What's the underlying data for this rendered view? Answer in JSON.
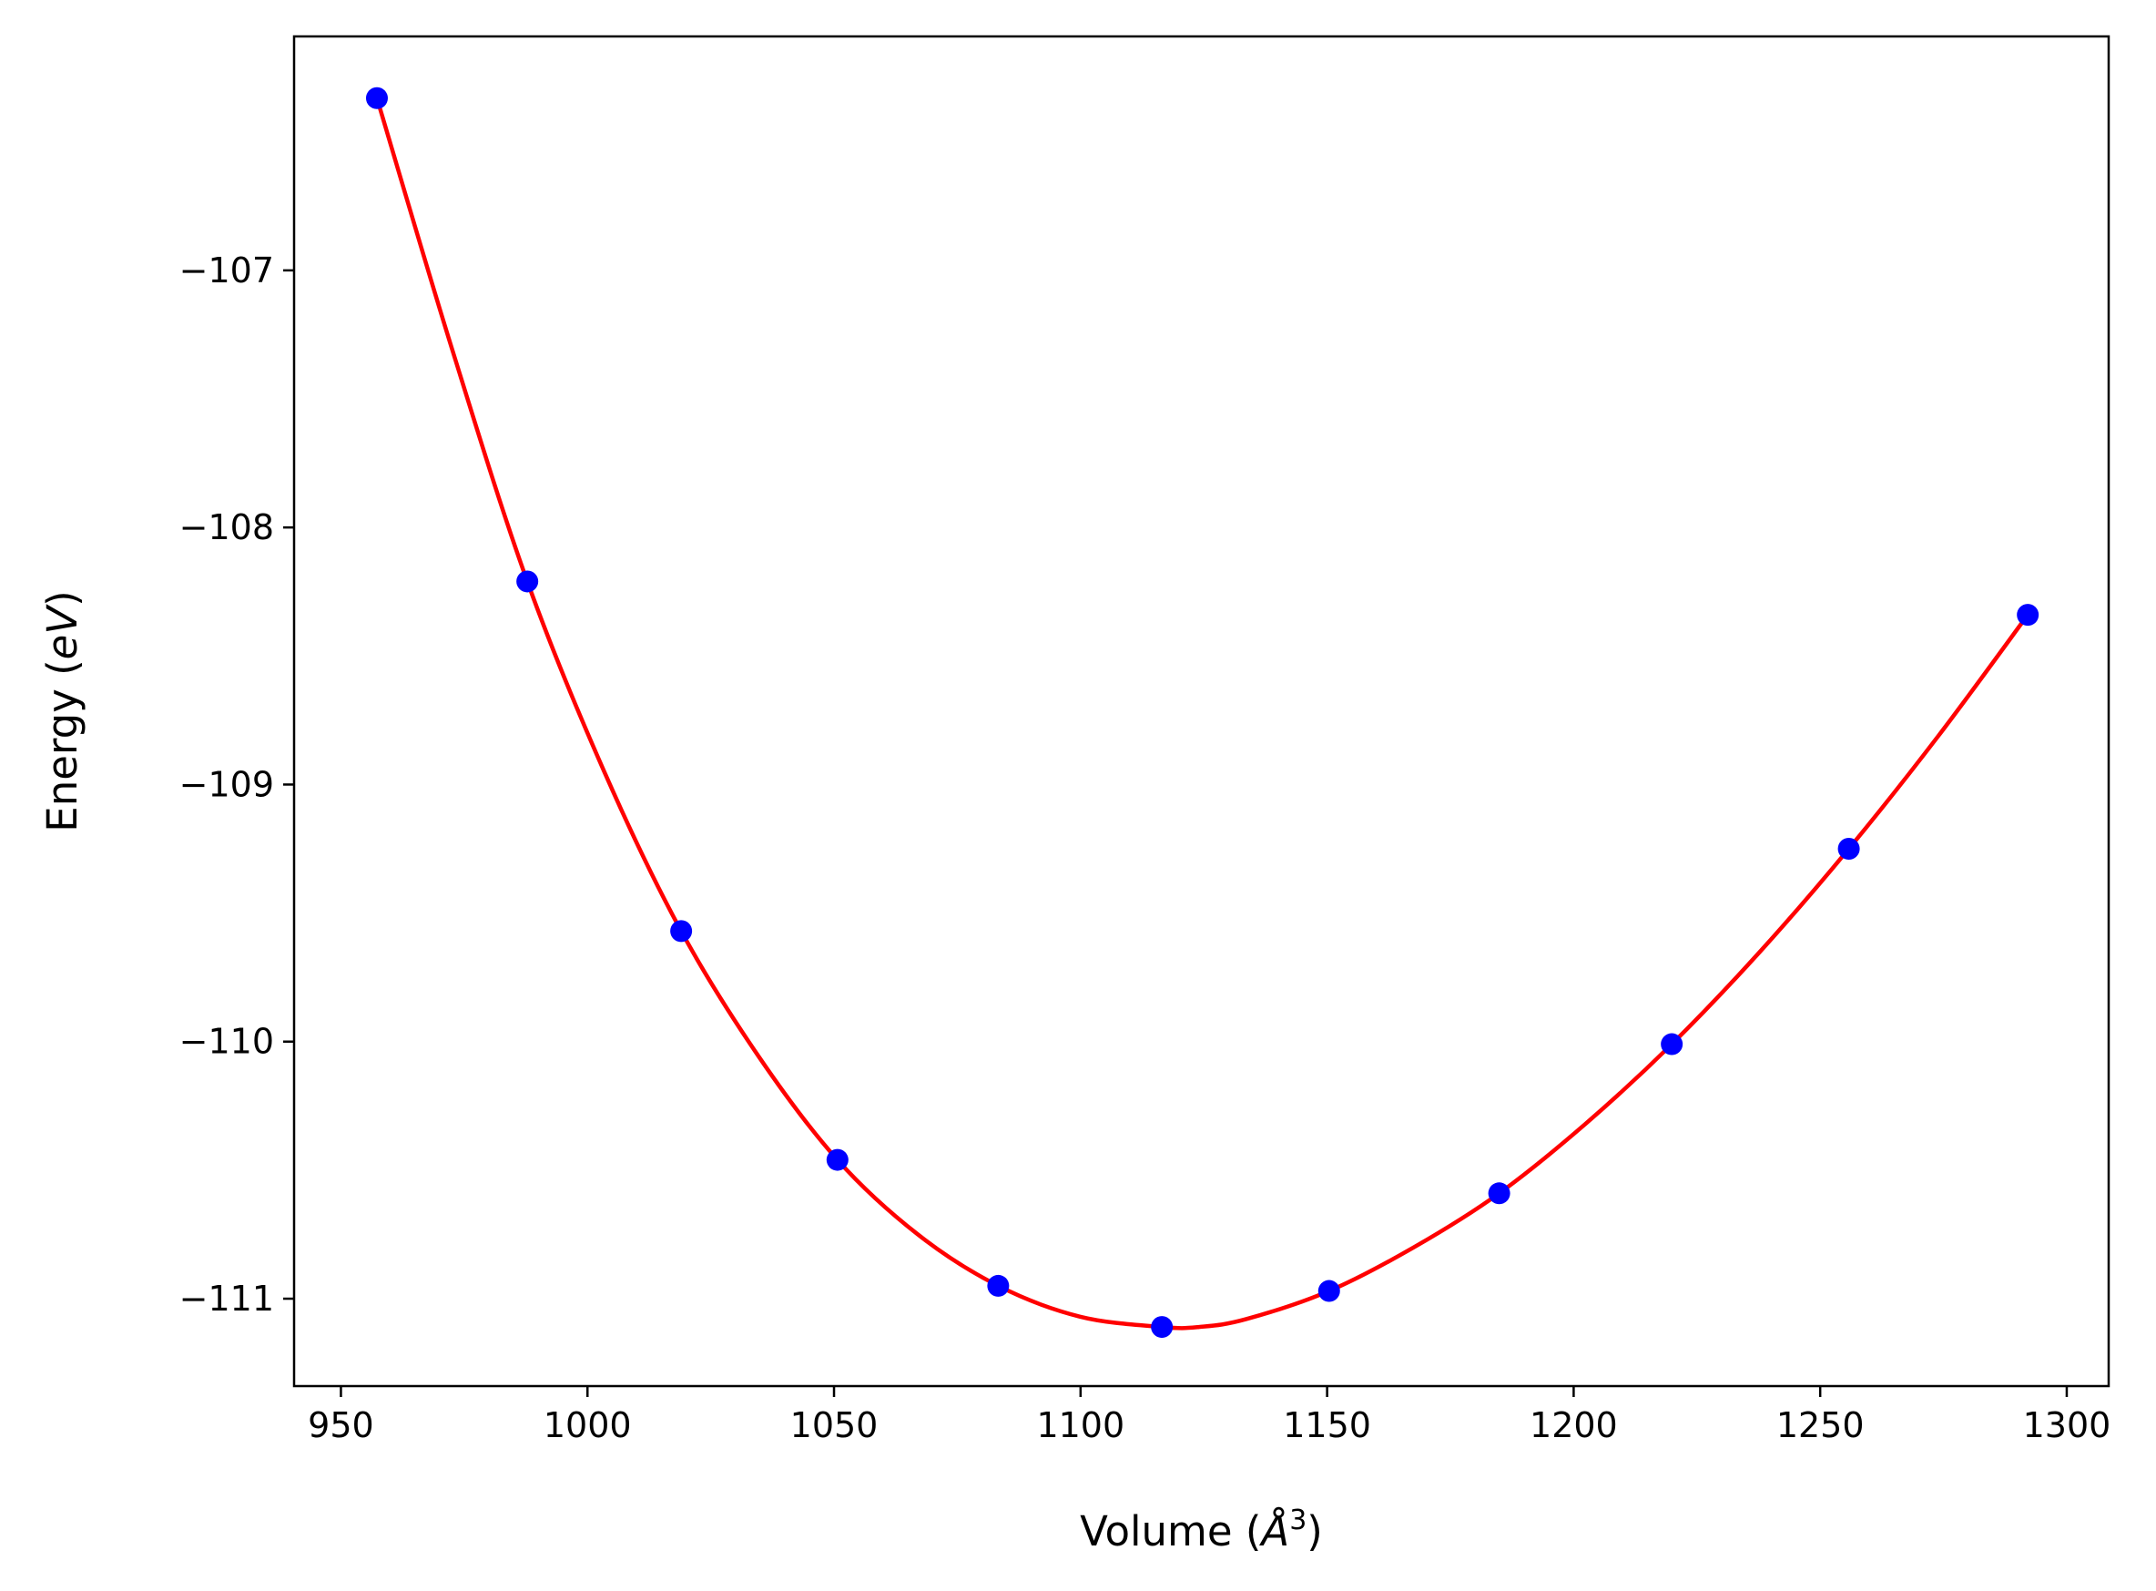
{
  "chart_data": {
    "type": "scatter",
    "title": "",
    "xlabel": "Volume ($\\AA^3$)",
    "ylabel": "Energy ($eV$)",
    "xlabel_parts": {
      "prefix": "Volume (",
      "symbol": "Å",
      "sup": "3",
      "suffix": ")"
    },
    "ylabel_parts": {
      "prefix": "Energy (",
      "italic": "eV",
      "suffix": ")"
    },
    "xlim": [
      940.5,
      1308.5
    ],
    "ylim": [
      -111.34,
      -106.09
    ],
    "xticks": [
      950,
      1000,
      1050,
      1100,
      1150,
      1200,
      1250,
      1300
    ],
    "xtick_labels": [
      "950",
      "1000",
      "1050",
      "1100",
      "1150",
      "1200",
      "1250",
      "1300"
    ],
    "yticks": [
      -111,
      -110,
      -109,
      -108,
      -107
    ],
    "ytick_labels": [
      "−111",
      "−110",
      "−109",
      "−108",
      "−107"
    ],
    "grid": false,
    "legend": "none",
    "series": [
      {
        "kind": "points",
        "color": "#0000ff",
        "x": [
          957.3,
          987.8,
          1019.0,
          1050.7,
          1083.3,
          1116.5,
          1150.4,
          1184.9,
          1219.9,
          1255.8,
          1292.1
        ],
        "y": [
          -106.33,
          -108.21,
          -109.57,
          -110.46,
          -110.95,
          -111.11,
          -110.97,
          -110.59,
          -110.01,
          -109.25,
          -108.34
        ]
      },
      {
        "kind": "fit-line",
        "color": "#ff0000",
        "x": [
          957.3,
          972.6,
          987.8,
          1003.4,
          1019.0,
          1034.8,
          1050.7,
          1067.0,
          1083.3,
          1099.9,
          1116.5,
          1124.0,
          1133.5,
          1150.4,
          1167.6,
          1184.9,
          1202.4,
          1219.9,
          1237.8,
          1255.8,
          1274.0,
          1292.1
        ],
        "y": [
          -106.33,
          -107.31,
          -108.21,
          -108.95,
          -109.57,
          -110.06,
          -110.46,
          -110.75,
          -110.95,
          -111.07,
          -111.11,
          -111.11,
          -111.08,
          -110.97,
          -110.8,
          -110.59,
          -110.32,
          -110.01,
          -109.65,
          -109.25,
          -108.81,
          -108.34
        ]
      }
    ]
  }
}
